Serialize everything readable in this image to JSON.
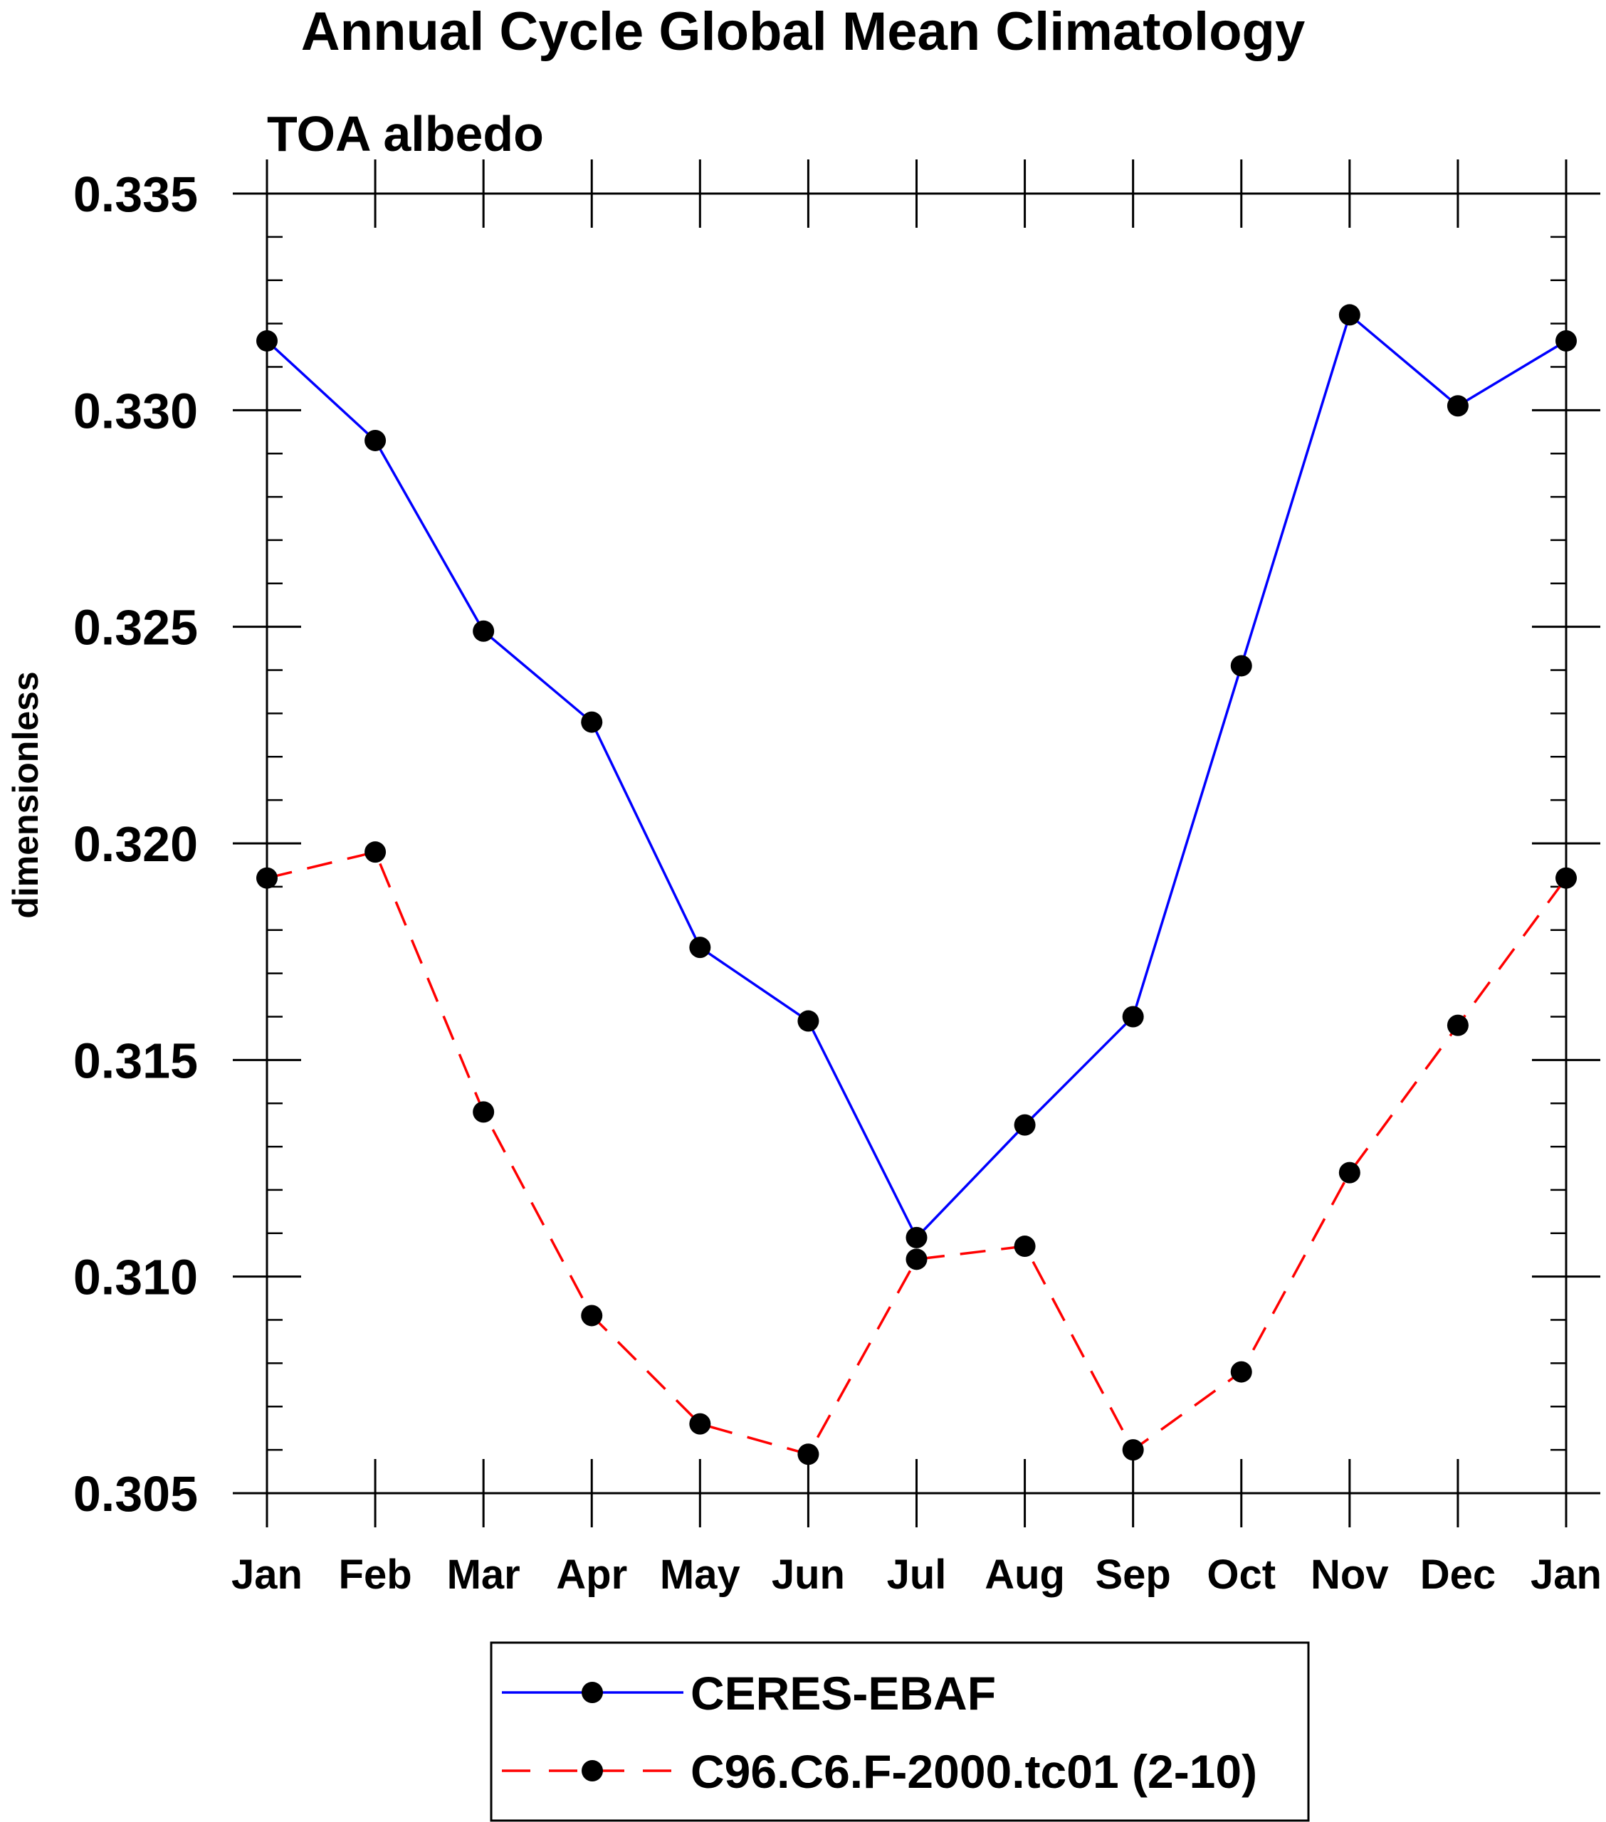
{
  "chart_data": {
    "type": "line",
    "title": "Annual Cycle Global Mean Climatology",
    "subtitle": "TOA albedo",
    "xlabel": "",
    "ylabel": "dimensionless",
    "categories": [
      "Jan",
      "Feb",
      "Mar",
      "Apr",
      "May",
      "Jun",
      "Jul",
      "Aug",
      "Sep",
      "Oct",
      "Nov",
      "Dec",
      "Jan"
    ],
    "ylim": [
      0.305,
      0.335
    ],
    "y_ticks": [
      "0.305",
      "0.310",
      "0.315",
      "0.320",
      "0.325",
      "0.330",
      "0.335"
    ],
    "y_tick_values": [
      0.305,
      0.31,
      0.315,
      0.32,
      0.325,
      0.33,
      0.335
    ],
    "y_minor_step": 0.001,
    "series": [
      {
        "name": "CERES-EBAF",
        "color": "#0000ff",
        "dash": "solid",
        "marker": "filled-circle",
        "values": [
          0.3316,
          0.3293,
          0.3249,
          0.3228,
          0.3176,
          0.3159,
          0.3109,
          0.3135,
          0.316,
          0.3241,
          0.3322,
          0.3301,
          0.3316
        ]
      },
      {
        "name": "C96.C6.F-2000.tc01 (2-10)",
        "color": "#ff0000",
        "dash": "dashed",
        "marker": "filled-circle",
        "values": [
          0.3192,
          0.3198,
          0.3138,
          0.3091,
          0.3066,
          0.3059,
          0.3104,
          0.3107,
          0.306,
          0.3078,
          0.3124,
          0.3158,
          0.3192
        ]
      }
    ],
    "legend_position": "bottom-center"
  }
}
